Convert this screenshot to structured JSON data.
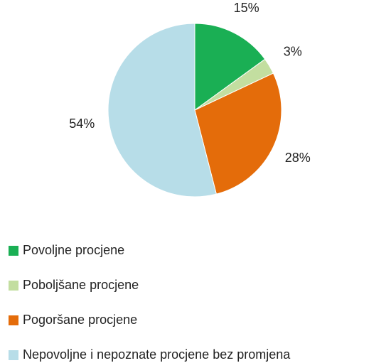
{
  "chart_data": {
    "type": "pie",
    "categories": [
      "Povoljne procjene",
      "Poboljšane procjene",
      "Pogoršane procjene",
      "Nepovoljne i nepoznate procjene bez promjena"
    ],
    "values": [
      15,
      3,
      28,
      54
    ],
    "value_labels": [
      "15%",
      "3%",
      "28%",
      "54%"
    ],
    "colors": [
      "#1aaf54",
      "#c3dea0",
      "#e46c0a",
      "#b7dde8"
    ],
    "legend": "bottom"
  }
}
